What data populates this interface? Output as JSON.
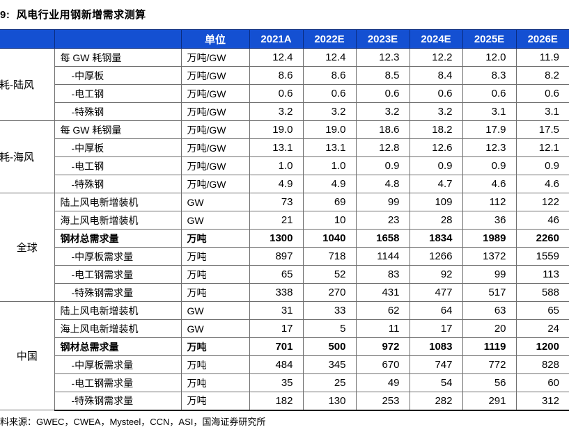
{
  "title": "9:  风电行业用钢新增需求测算",
  "source": "料来源：GWEC，CWEA，Mysteel，CCN，ASI，国海证券研究所",
  "colors": {
    "header_bg": "#1450d2",
    "header_border": "#0a2c80",
    "header_text": "#ffffff",
    "grid_line": "#6e6e6e",
    "table_bottom_border": "#1a1a1a"
  },
  "table": {
    "unit_header": "单位",
    "year_headers": [
      "2021A",
      "2022E",
      "2023E",
      "2024E",
      "2025E",
      "2026E"
    ],
    "groups": [
      {
        "name": "耗-陆风",
        "clipped": true,
        "rows": [
          {
            "label": "每 GW 耗钢量",
            "indent": false,
            "bold": false,
            "unit": "万吨/GW",
            "values": [
              "12.4",
              "12.4",
              "12.3",
              "12.2",
              "12.0",
              "11.9"
            ]
          },
          {
            "label": "-中厚板",
            "indent": true,
            "bold": false,
            "unit": "万吨/GW",
            "values": [
              "8.6",
              "8.6",
              "8.5",
              "8.4",
              "8.3",
              "8.2"
            ]
          },
          {
            "label": "-电工钢",
            "indent": true,
            "bold": false,
            "unit": "万吨/GW",
            "values": [
              "0.6",
              "0.6",
              "0.6",
              "0.6",
              "0.6",
              "0.6"
            ]
          },
          {
            "label": "-特殊钢",
            "indent": true,
            "bold": false,
            "unit": "万吨/GW",
            "values": [
              "3.2",
              "3.2",
              "3.2",
              "3.2",
              "3.1",
              "3.1"
            ]
          }
        ]
      },
      {
        "name": "耗-海风",
        "clipped": true,
        "rows": [
          {
            "label": "每 GW 耗钢量",
            "indent": false,
            "bold": false,
            "unit": "万吨/GW",
            "values": [
              "19.0",
              "19.0",
              "18.6",
              "18.2",
              "17.9",
              "17.5"
            ]
          },
          {
            "label": "-中厚板",
            "indent": true,
            "bold": false,
            "unit": "万吨/GW",
            "values": [
              "13.1",
              "13.1",
              "12.8",
              "12.6",
              "12.3",
              "12.1"
            ]
          },
          {
            "label": "-电工钢",
            "indent": true,
            "bold": false,
            "unit": "万吨/GW",
            "values": [
              "1.0",
              "1.0",
              "0.9",
              "0.9",
              "0.9",
              "0.9"
            ]
          },
          {
            "label": "-特殊钢",
            "indent": true,
            "bold": false,
            "unit": "万吨/GW",
            "values": [
              "4.9",
              "4.9",
              "4.8",
              "4.7",
              "4.6",
              "4.6"
            ]
          }
        ]
      },
      {
        "name": "全球",
        "clipped": false,
        "rows": [
          {
            "label": "陆上风电新增装机",
            "indent": false,
            "bold": false,
            "unit": "GW",
            "values": [
              "73",
              "69",
              "99",
              "109",
              "112",
              "122"
            ]
          },
          {
            "label": "海上风电新增装机",
            "indent": false,
            "bold": false,
            "unit": "GW",
            "values": [
              "21",
              "10",
              "23",
              "28",
              "36",
              "46"
            ]
          },
          {
            "label": "钢材总需求量",
            "indent": false,
            "bold": true,
            "unit": "万吨",
            "values": [
              "1300",
              "1040",
              "1658",
              "1834",
              "1989",
              "2260"
            ]
          },
          {
            "label": "-中厚板需求量",
            "indent": true,
            "bold": false,
            "unit": "万吨",
            "values": [
              "897",
              "718",
              "1144",
              "1266",
              "1372",
              "1559"
            ]
          },
          {
            "label": "-电工钢需求量",
            "indent": true,
            "bold": false,
            "unit": "万吨",
            "values": [
              "65",
              "52",
              "83",
              "92",
              "99",
              "113"
            ]
          },
          {
            "label": "-特殊钢需求量",
            "indent": true,
            "bold": false,
            "unit": "万吨",
            "values": [
              "338",
              "270",
              "431",
              "477",
              "517",
              "588"
            ]
          }
        ]
      },
      {
        "name": "中国",
        "clipped": false,
        "rows": [
          {
            "label": "陆上风电新增装机",
            "indent": false,
            "bold": false,
            "unit": "GW",
            "values": [
              "31",
              "33",
              "62",
              "64",
              "63",
              "65"
            ]
          },
          {
            "label": "海上风电新增装机",
            "indent": false,
            "bold": false,
            "unit": "GW",
            "values": [
              "17",
              "5",
              "11",
              "17",
              "20",
              "24"
            ]
          },
          {
            "label": "钢材总需求量",
            "indent": false,
            "bold": true,
            "unit": "万吨",
            "values": [
              "701",
              "500",
              "972",
              "1083",
              "1119",
              "1200"
            ]
          },
          {
            "label": "-中厚板需求量",
            "indent": true,
            "bold": false,
            "unit": "万吨",
            "values": [
              "484",
              "345",
              "670",
              "747",
              "772",
              "828"
            ]
          },
          {
            "label": "-电工钢需求量",
            "indent": true,
            "bold": false,
            "unit": "万吨",
            "values": [
              "35",
              "25",
              "49",
              "54",
              "56",
              "60"
            ]
          },
          {
            "label": "-特殊钢需求量",
            "indent": true,
            "bold": false,
            "unit": "万吨",
            "values": [
              "182",
              "130",
              "253",
              "282",
              "291",
              "312"
            ]
          }
        ]
      }
    ]
  }
}
